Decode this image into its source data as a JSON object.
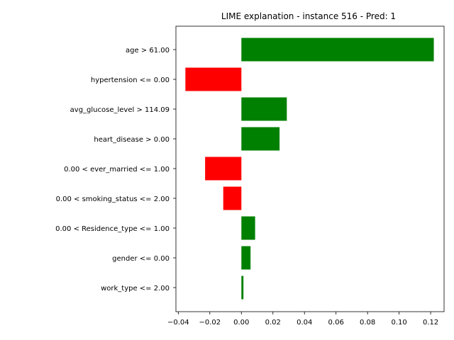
{
  "chart_data": {
    "type": "bar",
    "orientation": "horizontal",
    "title": "LIME explanation - instance 516 - Pred: 1",
    "xlabel": "",
    "ylabel": "",
    "xlim": [
      -0.0415,
      0.1285
    ],
    "x_ticks": [
      -0.04,
      -0.02,
      0.0,
      0.02,
      0.04,
      0.06,
      0.08,
      0.1,
      0.12
    ],
    "x_tick_labels": [
      "−0.04",
      "−0.02",
      "0.00",
      "0.02",
      "0.04",
      "0.06",
      "0.08",
      "0.10",
      "0.12"
    ],
    "grid": false,
    "legend": false,
    "categories": [
      "age > 61.00",
      "hypertension <= 0.00",
      "avg_glucose_level > 114.09",
      "heart_disease > 0.00",
      "0.00 < ever_married <= 1.00",
      "0.00 < smoking_status <= 2.00",
      "0.00 < Residence_type <= 1.00",
      "gender <= 0.00",
      "work_type <= 2.00"
    ],
    "values": [
      0.122,
      -0.0355,
      0.0288,
      0.0242,
      -0.023,
      -0.0115,
      0.0087,
      0.0058,
      0.0013
    ],
    "colors": {
      "positive": "#008000",
      "negative": "#ff0000"
    }
  }
}
